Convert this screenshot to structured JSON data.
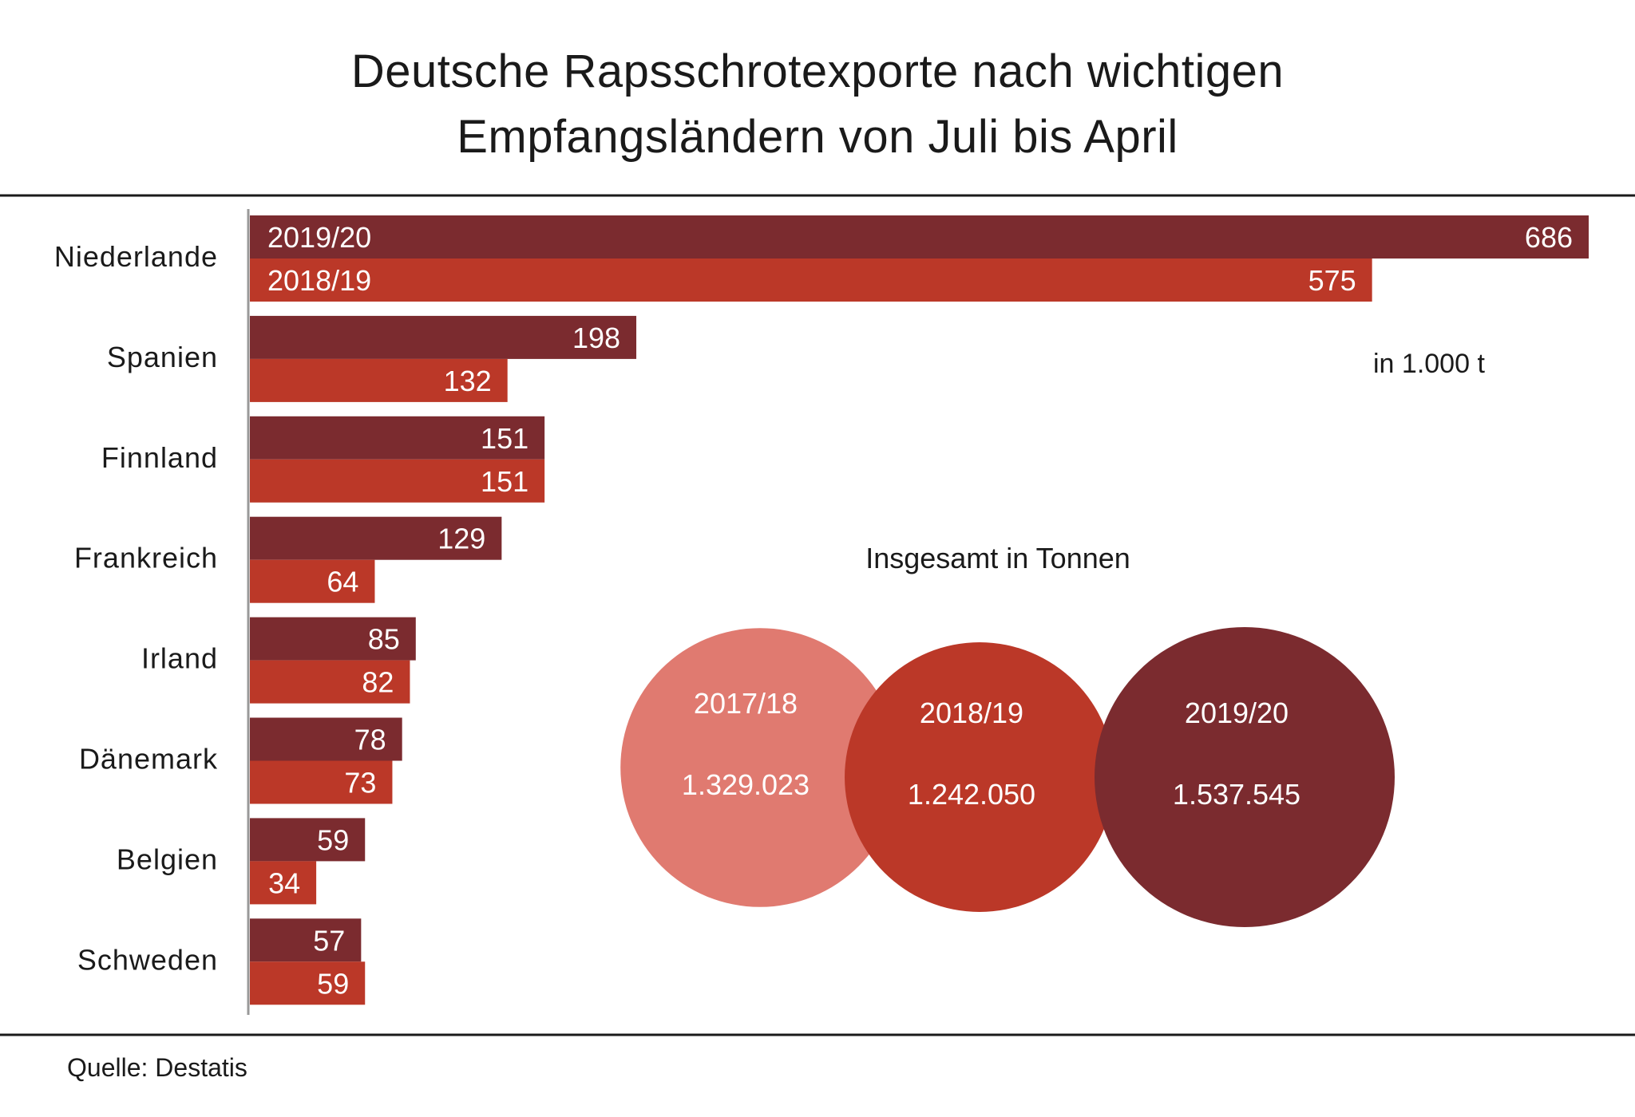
{
  "title_lines": [
    "Deutsche Rapsschrotexporte  nach wichtigen",
    "Empfangsländern  von Juli bis April"
  ],
  "source": "Quelle: Destatis",
  "colors": {
    "series_2019_20": "#7b2b2f",
    "series_2018_19": "#bb3828",
    "circle_2017_18": "#e07a70",
    "circle_2018_19": "#bb3828",
    "circle_2019_20": "#7b2b2f",
    "rule": "#1a1a1a",
    "axis": "#999999"
  },
  "chart_data": [
    {
      "type": "bar",
      "orientation": "horizontal",
      "unit_label": "in 1.000  t",
      "categories": [
        "Niederlande",
        "Spanien",
        "Finnland",
        "Frankreich",
        "Irland",
        "Dänemark",
        "Belgien",
        "Schweden"
      ],
      "series": [
        {
          "name": "2019/20",
          "values": [
            686,
            198,
            151,
            129,
            85,
            78,
            59,
            57
          ]
        },
        {
          "name": "2018/19",
          "values": [
            575,
            132,
            151,
            64,
            82,
            73,
            34,
            59
          ]
        }
      ],
      "xlim": [
        0,
        686
      ],
      "grid": false,
      "legend": "inline labels in first bar pair"
    },
    {
      "type": "bubble",
      "title": "Insgesamt  in Tonnen",
      "categories": [
        "2017/18",
        "2018/19",
        "2019/20"
      ],
      "values": [
        1329023,
        1242050,
        1537545
      ],
      "value_labels": [
        "1.329.023",
        "1.242.050",
        "1.537.545"
      ]
    }
  ]
}
